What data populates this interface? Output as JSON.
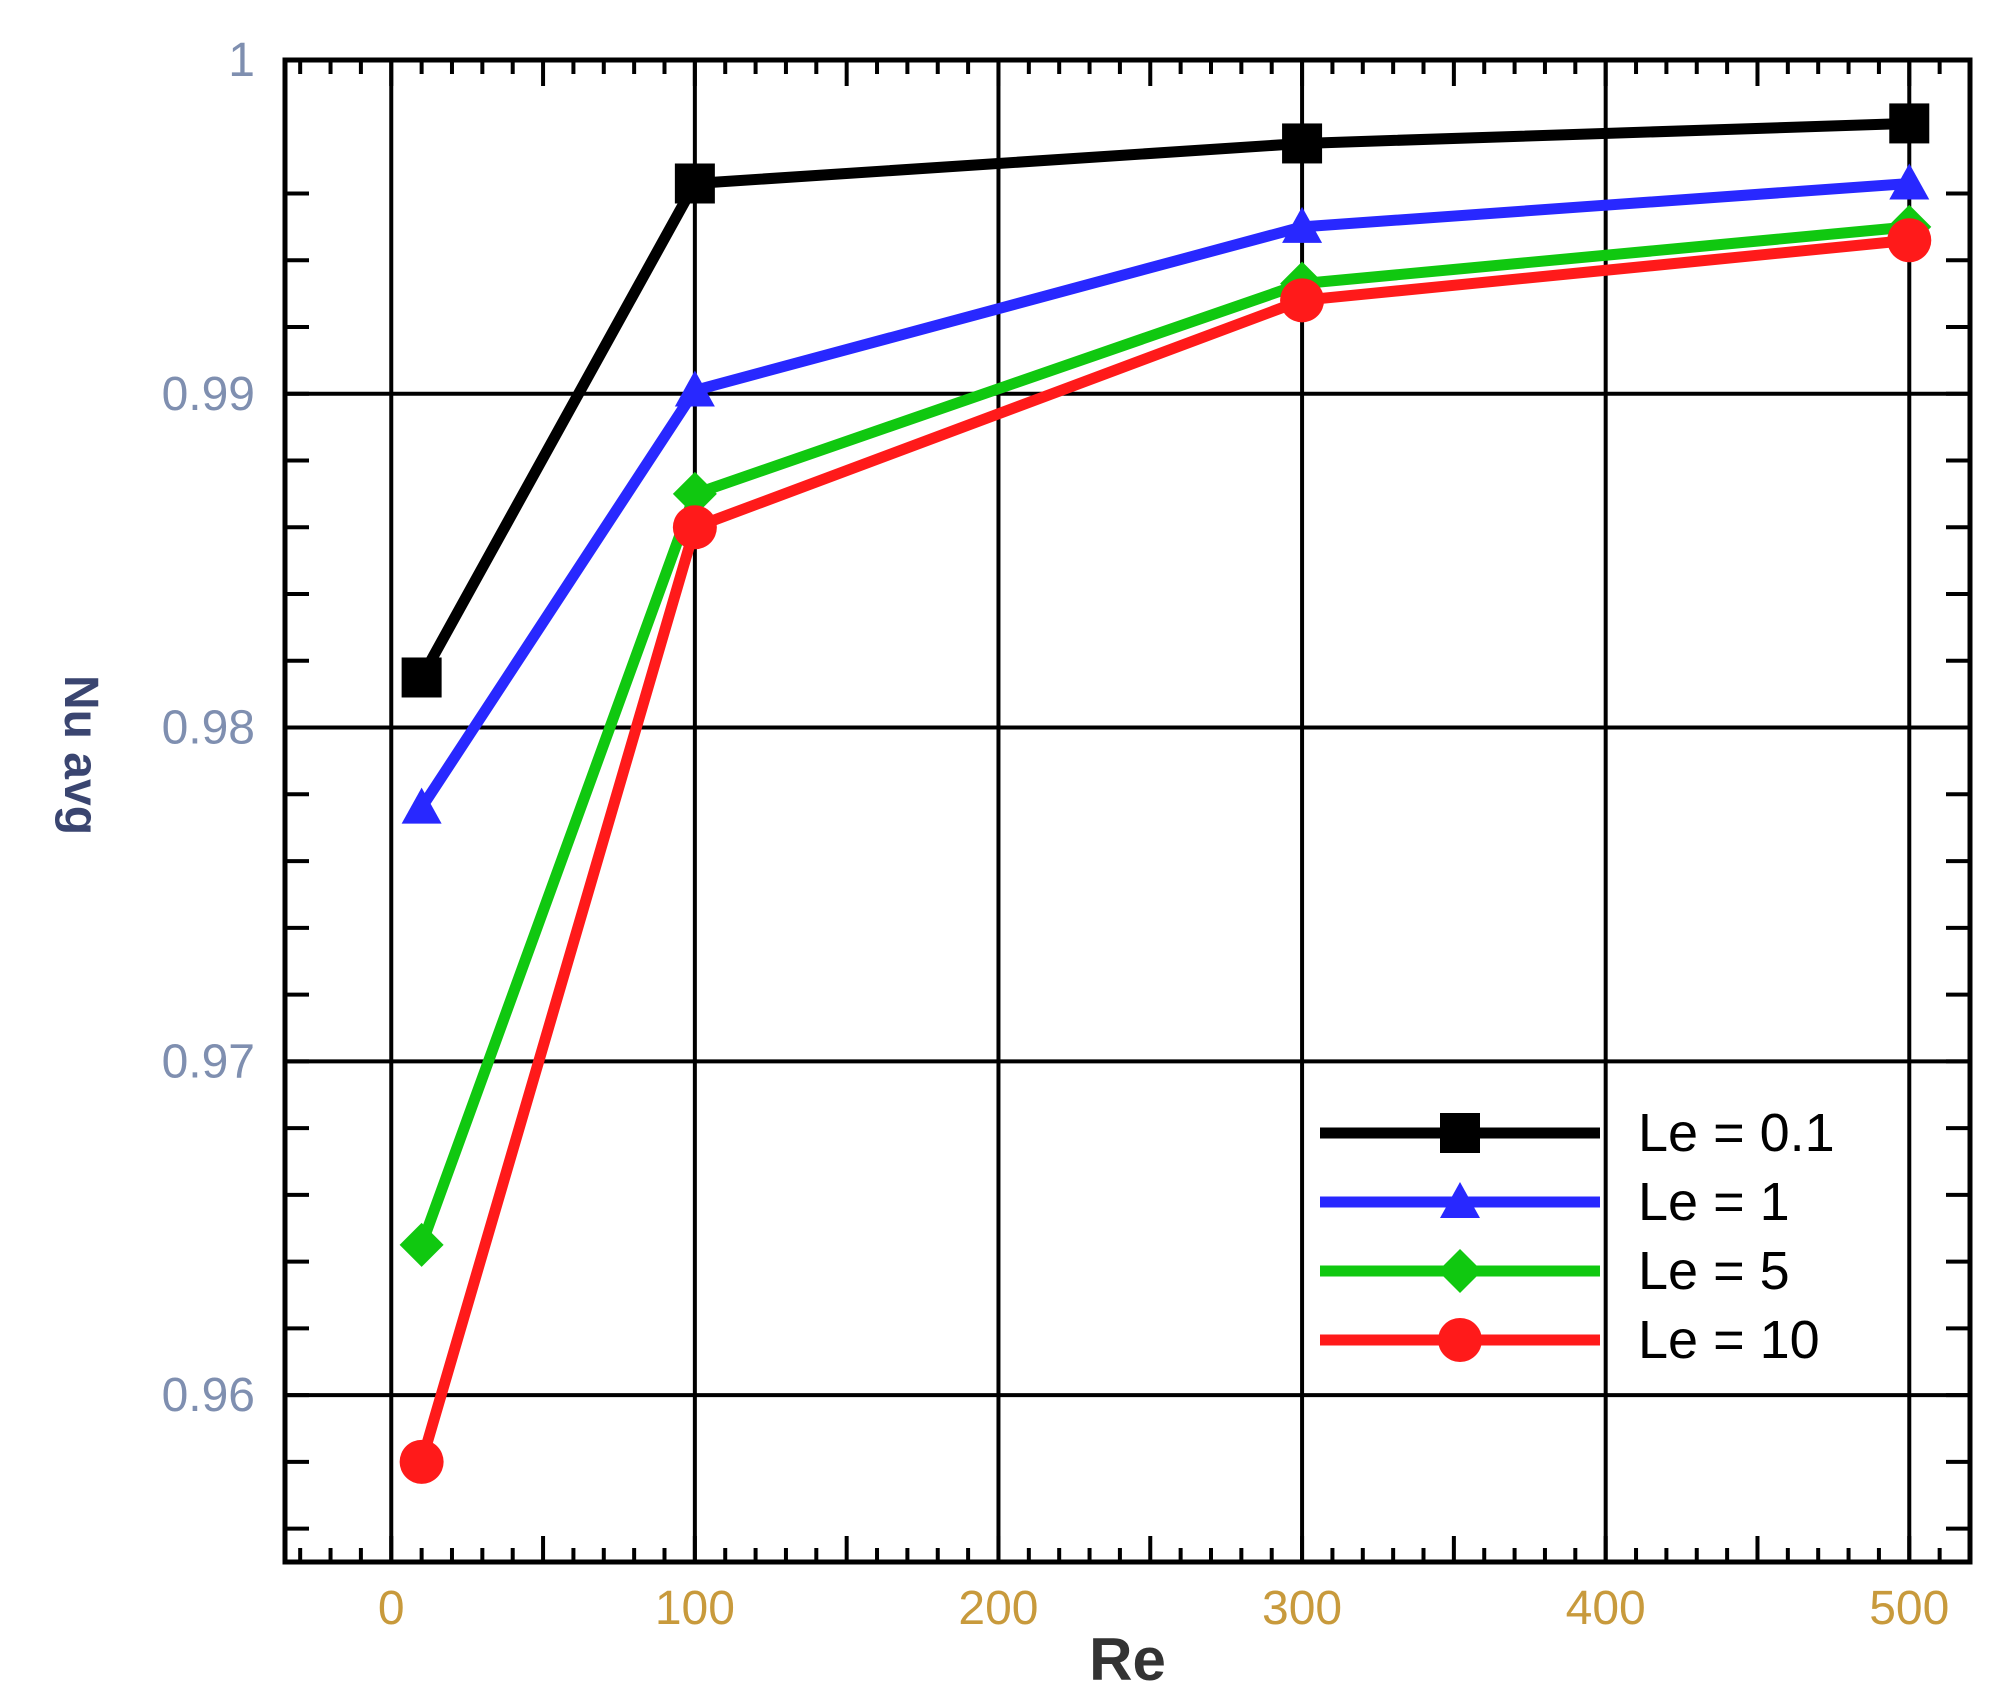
{
  "chart_data": {
    "type": "line",
    "title": "",
    "xlabel": "Re",
    "ylabel": "Nu_avg",
    "xlim": [
      -35,
      520
    ],
    "ylim": [
      0.955,
      1.0
    ],
    "x_ticks": [
      0,
      100,
      200,
      300,
      400,
      500
    ],
    "x_tick_labels": [
      "0",
      "100",
      "200",
      "300",
      "400",
      "500"
    ],
    "y_ticks": [
      0.96,
      0.97,
      0.98,
      0.99,
      1.0
    ],
    "y_tick_labels": [
      "0.96",
      "0.97",
      "0.98",
      "0.99",
      "1"
    ],
    "grid": true,
    "legend_position": "bottom-right",
    "x": [
      10,
      100,
      300,
      500
    ],
    "series": [
      {
        "name": "Le = 0.1",
        "color": "#000000",
        "marker": "square",
        "values": [
          0.9815,
          0.9963,
          0.9975,
          0.9981
        ]
      },
      {
        "name": "Le = 1",
        "color": "#2828ff",
        "marker": "triangle",
        "values": [
          0.9776,
          0.9901,
          0.995,
          0.9963
        ]
      },
      {
        "name": "Le = 5",
        "color": "#10c810",
        "marker": "diamond",
        "values": [
          0.9645,
          0.987,
          0.9933,
          0.995
        ]
      },
      {
        "name": "Le = 10",
        "color": "#ff1a1a",
        "marker": "circle",
        "values": [
          0.958,
          0.986,
          0.9928,
          0.9946
        ]
      }
    ]
  }
}
